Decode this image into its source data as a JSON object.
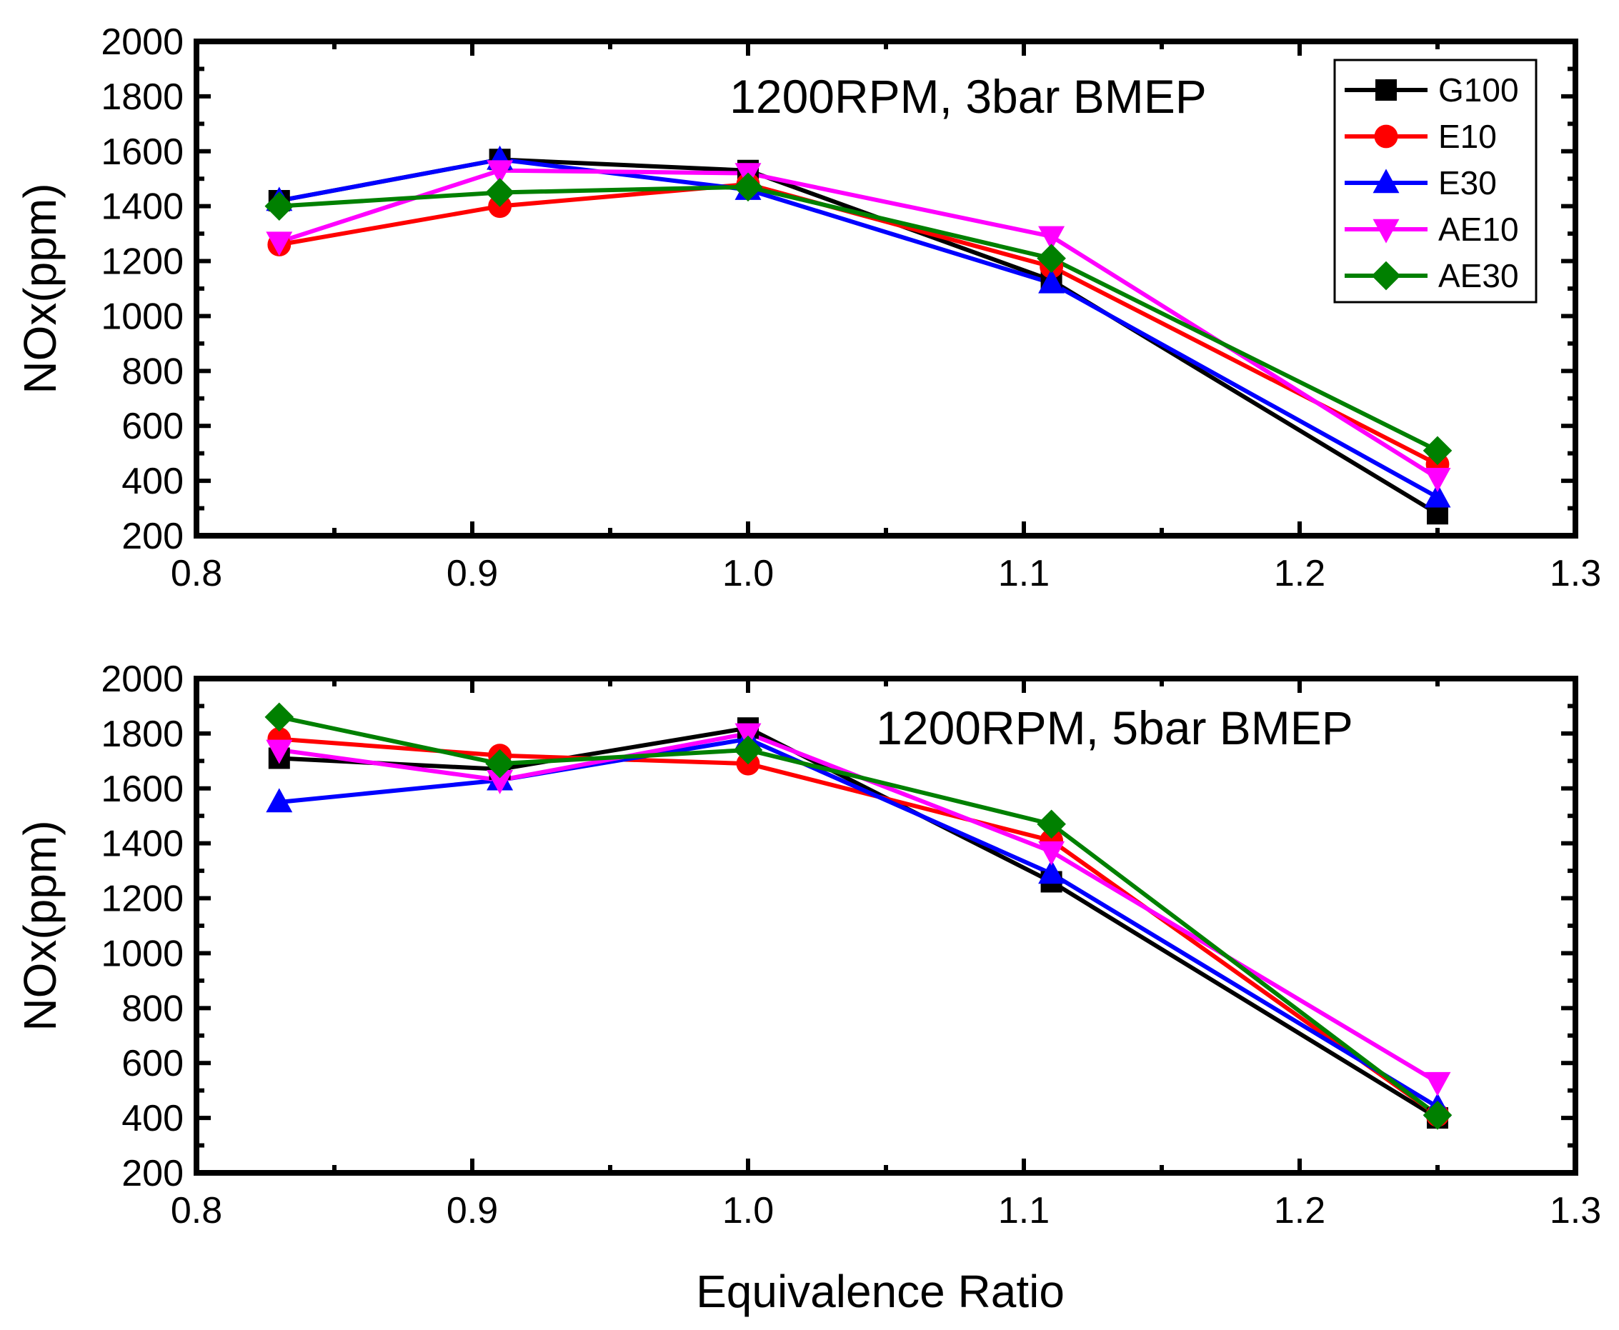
{
  "chart_data": [
    {
      "type": "line",
      "title": "1200RPM, 3bar BMEP",
      "xlabel": "",
      "ylabel": "NOx(ppm)",
      "xlim": [
        0.8,
        1.3
      ],
      "ylim": [
        200,
        2000
      ],
      "x_ticks": [
        "0.8",
        "0.9",
        "1.0",
        "1.1",
        "1.2",
        "1.3"
      ],
      "y_ticks": [
        "200",
        "400",
        "600",
        "800",
        "1000",
        "1200",
        "1400",
        "1600",
        "1800",
        "2000"
      ],
      "x": [
        0.83,
        0.91,
        1.0,
        1.11,
        1.25
      ],
      "legend": "top-right",
      "series": [
        {
          "name": "G100",
          "color": "#000000",
          "marker": "square",
          "values": [
            1420,
            1570,
            1530,
            1130,
            280
          ]
        },
        {
          "name": "E10",
          "color": "#ff0000",
          "marker": "circle",
          "values": [
            1260,
            1400,
            1480,
            1180,
            460
          ]
        },
        {
          "name": "E30",
          "color": "#0000ff",
          "marker": "triangle-up",
          "values": [
            1420,
            1570,
            1460,
            1120,
            340
          ]
        },
        {
          "name": "AE10",
          "color": "#ff00ff",
          "marker": "triangle-down",
          "values": [
            1270,
            1530,
            1520,
            1290,
            410
          ]
        },
        {
          "name": "AE30",
          "color": "#008000",
          "marker": "diamond",
          "values": [
            1400,
            1450,
            1470,
            1210,
            510
          ]
        }
      ]
    },
    {
      "type": "line",
      "title": "1200RPM, 5bar BMEP",
      "xlabel": "Equivalence Ratio",
      "ylabel": "NOx(ppm)",
      "xlim": [
        0.8,
        1.3
      ],
      "ylim": [
        200,
        2000
      ],
      "x_ticks": [
        "0.8",
        "0.9",
        "1.0",
        "1.1",
        "1.2",
        "1.3"
      ],
      "y_ticks": [
        "200",
        "400",
        "600",
        "800",
        "1000",
        "1200",
        "1400",
        "1600",
        "1800",
        "2000"
      ],
      "x": [
        0.83,
        0.91,
        1.0,
        1.11,
        1.25
      ],
      "series": [
        {
          "name": "G100",
          "color": "#000000",
          "marker": "square",
          "values": [
            1710,
            1670,
            1820,
            1260,
            400
          ]
        },
        {
          "name": "E10",
          "color": "#ff0000",
          "marker": "circle",
          "values": [
            1780,
            1720,
            1690,
            1410,
            410
          ]
        },
        {
          "name": "E30",
          "color": "#0000ff",
          "marker": "triangle-up",
          "values": [
            1550,
            1630,
            1780,
            1290,
            440
          ]
        },
        {
          "name": "AE10",
          "color": "#ff00ff",
          "marker": "triangle-down",
          "values": [
            1740,
            1630,
            1800,
            1370,
            530
          ]
        },
        {
          "name": "AE30",
          "color": "#008000",
          "marker": "diamond",
          "values": [
            1860,
            1690,
            1740,
            1470,
            410
          ]
        }
      ]
    }
  ]
}
